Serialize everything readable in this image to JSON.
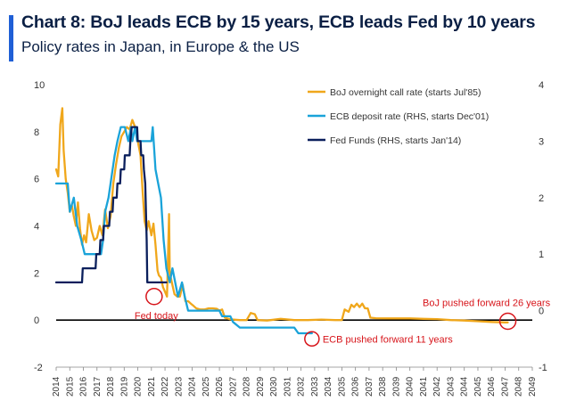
{
  "header": {
    "title": "Chart 8: BoJ leads ECB by 15 years, ECB leads Fed by 10 years",
    "subtitle": "Policy rates in Japan, in Europe & the US"
  },
  "chart_data": {
    "type": "line",
    "x_unit": "year",
    "xlim": [
      2014,
      2049
    ],
    "x_tick_labels": [
      "2014",
      "2015",
      "2016",
      "2017",
      "2018",
      "2019",
      "2020",
      "2021",
      "2022",
      "2023",
      "2024",
      "2025",
      "2026",
      "2027",
      "2028",
      "2029",
      "2030",
      "2031",
      "2032",
      "2033",
      "2034",
      "2035",
      "2036",
      "2037",
      "2038",
      "2039",
      "2040",
      "2041",
      "2042",
      "2043",
      "2044",
      "2045",
      "2046",
      "2047",
      "2048",
      "2049"
    ],
    "y_left": {
      "ylim": [
        -2,
        10
      ],
      "ticks": [
        -2,
        0,
        2,
        4,
        6,
        8,
        10
      ]
    },
    "y_right": {
      "ylim": [
        -1,
        4
      ],
      "ticks": [
        -1,
        0,
        1,
        2,
        3,
        4
      ]
    },
    "grid": false,
    "legend_position": "top-right",
    "series": [
      {
        "name": "BoJ overnight call rate (starts Jul'85)",
        "axis": "left",
        "color": "#f0a71b",
        "points": [
          [
            2014.0,
            6.4
          ],
          [
            2014.15,
            6.1
          ],
          [
            2014.3,
            8.3
          ],
          [
            2014.45,
            9.0
          ],
          [
            2014.55,
            7.2
          ],
          [
            2014.7,
            6.0
          ],
          [
            2014.85,
            5.4
          ],
          [
            2015.0,
            4.6
          ],
          [
            2015.15,
            4.9
          ],
          [
            2015.3,
            4.4
          ],
          [
            2015.45,
            4.0
          ],
          [
            2015.6,
            5.0
          ],
          [
            2015.75,
            3.9
          ],
          [
            2015.9,
            3.2
          ],
          [
            2016.05,
            3.6
          ],
          [
            2016.2,
            3.3
          ],
          [
            2016.4,
            4.5
          ],
          [
            2016.6,
            3.8
          ],
          [
            2016.8,
            3.4
          ],
          [
            2017.0,
            3.5
          ],
          [
            2017.2,
            4.0
          ],
          [
            2017.4,
            3.6
          ],
          [
            2017.6,
            4.7
          ],
          [
            2017.8,
            3.9
          ],
          [
            2018.0,
            4.4
          ],
          [
            2018.2,
            5.8
          ],
          [
            2018.4,
            6.6
          ],
          [
            2018.6,
            7.3
          ],
          [
            2018.8,
            7.8
          ],
          [
            2019.0,
            8.0
          ],
          [
            2019.2,
            8.2
          ],
          [
            2019.4,
            8.1
          ],
          [
            2019.6,
            8.5
          ],
          [
            2019.8,
            8.2
          ],
          [
            2020.0,
            7.6
          ],
          [
            2020.2,
            7.0
          ],
          [
            2020.35,
            5.5
          ],
          [
            2020.5,
            4.2
          ],
          [
            2020.65,
            3.8
          ],
          [
            2020.8,
            4.2
          ],
          [
            2021.0,
            3.6
          ],
          [
            2021.15,
            4.1
          ],
          [
            2021.3,
            3.2
          ],
          [
            2021.45,
            2.1
          ],
          [
            2021.55,
            1.9
          ],
          [
            2021.7,
            1.8
          ],
          [
            2021.85,
            1.4
          ],
          [
            2022.0,
            1.2
          ],
          [
            2022.15,
            1.0
          ],
          [
            2022.3,
            4.5
          ],
          [
            2022.35,
            2.0
          ],
          [
            2022.5,
            1.6
          ],
          [
            2022.7,
            1.1
          ],
          [
            2022.9,
            1.0
          ],
          [
            2023.1,
            1.0
          ],
          [
            2023.3,
            1.5
          ],
          [
            2023.5,
            0.8
          ],
          [
            2023.7,
            0.8
          ],
          [
            2023.9,
            0.7
          ],
          [
            2024.1,
            0.6
          ],
          [
            2024.3,
            0.5
          ],
          [
            2024.6,
            0.45
          ],
          [
            2024.9,
            0.45
          ],
          [
            2025.2,
            0.5
          ],
          [
            2025.5,
            0.5
          ],
          [
            2025.8,
            0.48
          ],
          [
            2026.0,
            0.4
          ],
          [
            2026.2,
            0.45
          ],
          [
            2026.4,
            0.1
          ],
          [
            2026.8,
            0.03
          ],
          [
            2027.5,
            0.0
          ],
          [
            2028.0,
            0.0
          ],
          [
            2028.3,
            0.3
          ],
          [
            2028.6,
            0.25
          ],
          [
            2028.8,
            0.0
          ],
          [
            2029.5,
            -0.02
          ],
          [
            2030.5,
            0.05
          ],
          [
            2031.5,
            0.0
          ],
          [
            2032.5,
            0.0
          ],
          [
            2033.5,
            0.02
          ],
          [
            2034.5,
            0.0
          ],
          [
            2035.0,
            0.0
          ],
          [
            2035.2,
            0.45
          ],
          [
            2035.5,
            0.35
          ],
          [
            2035.7,
            0.65
          ],
          [
            2035.9,
            0.55
          ],
          [
            2036.1,
            0.7
          ],
          [
            2036.3,
            0.55
          ],
          [
            2036.5,
            0.7
          ],
          [
            2036.7,
            0.5
          ],
          [
            2036.9,
            0.5
          ],
          [
            2037.1,
            0.1
          ],
          [
            2037.5,
            0.08
          ],
          [
            2038.5,
            0.07
          ],
          [
            2040.0,
            0.07
          ],
          [
            2041.0,
            0.05
          ],
          [
            2042.0,
            0.04
          ],
          [
            2043.0,
            0.0
          ],
          [
            2044.0,
            -0.02
          ],
          [
            2045.0,
            -0.05
          ],
          [
            2046.0,
            -0.08
          ],
          [
            2047.0,
            -0.1
          ],
          [
            2047.2,
            -0.1
          ]
        ]
      },
      {
        "name": "ECB deposit rate (RHS, starts Dec'01)",
        "axis": "right",
        "color": "#1aa3d9",
        "points": [
          [
            2014.0,
            2.25
          ],
          [
            2014.85,
            2.25
          ],
          [
            2015.0,
            1.75
          ],
          [
            2015.3,
            2.0
          ],
          [
            2015.55,
            1.5
          ],
          [
            2015.85,
            1.25
          ],
          [
            2016.1,
            1.0
          ],
          [
            2017.3,
            1.0
          ],
          [
            2017.45,
            1.25
          ],
          [
            2017.6,
            1.75
          ],
          [
            2017.85,
            2.0
          ],
          [
            2018.0,
            2.25
          ],
          [
            2018.15,
            2.5
          ],
          [
            2018.3,
            2.75
          ],
          [
            2018.5,
            3.0
          ],
          [
            2018.75,
            3.25
          ],
          [
            2019.05,
            3.25
          ],
          [
            2019.3,
            3.0
          ],
          [
            2019.5,
            3.25
          ],
          [
            2019.6,
            3.0
          ],
          [
            2019.8,
            3.25
          ],
          [
            2019.95,
            3.0
          ],
          [
            2020.0,
            3.0
          ],
          [
            2021.0,
            3.0
          ],
          [
            2021.1,
            3.25
          ],
          [
            2021.3,
            2.5
          ],
          [
            2021.5,
            2.25
          ],
          [
            2021.7,
            2.0
          ],
          [
            2021.9,
            1.25
          ],
          [
            2022.1,
            0.75
          ],
          [
            2022.35,
            0.5
          ],
          [
            2022.55,
            0.75
          ],
          [
            2022.75,
            0.5
          ],
          [
            2022.95,
            0.25
          ],
          [
            2023.25,
            0.5
          ],
          [
            2023.45,
            0.25
          ],
          [
            2023.7,
            0.0
          ],
          [
            2026.0,
            0.0
          ],
          [
            2026.2,
            -0.1
          ],
          [
            2026.8,
            -0.1
          ],
          [
            2027.0,
            -0.2
          ],
          [
            2027.5,
            -0.3
          ],
          [
            2028.0,
            -0.3
          ],
          [
            2031.5,
            -0.3
          ],
          [
            2031.8,
            -0.4
          ],
          [
            2032.8,
            -0.4
          ]
        ]
      },
      {
        "name": "Fed Funds (RHS, starts Jan'14)",
        "axis": "right",
        "color": "#0a1f5c",
        "points": [
          [
            2014.0,
            0.5
          ],
          [
            2015.9,
            0.5
          ],
          [
            2015.95,
            0.75
          ],
          [
            2016.9,
            0.75
          ],
          [
            2016.95,
            1.0
          ],
          [
            2017.2,
            1.0
          ],
          [
            2017.25,
            1.25
          ],
          [
            2017.45,
            1.25
          ],
          [
            2017.5,
            1.5
          ],
          [
            2017.9,
            1.5
          ],
          [
            2017.95,
            1.75
          ],
          [
            2018.15,
            1.75
          ],
          [
            2018.2,
            2.0
          ],
          [
            2018.45,
            2.0
          ],
          [
            2018.5,
            2.25
          ],
          [
            2018.7,
            2.25
          ],
          [
            2018.75,
            2.5
          ],
          [
            2019.0,
            2.5
          ],
          [
            2019.05,
            2.75
          ],
          [
            2019.4,
            2.75
          ],
          [
            2019.45,
            3.0
          ],
          [
            2019.55,
            3.25
          ],
          [
            2019.95,
            3.25
          ],
          [
            2020.0,
            3.0
          ],
          [
            2020.2,
            3.0
          ],
          [
            2020.25,
            2.75
          ],
          [
            2020.4,
            2.75
          ],
          [
            2020.45,
            2.5
          ],
          [
            2020.55,
            2.25
          ],
          [
            2020.65,
            1.25
          ],
          [
            2020.7,
            0.5
          ],
          [
            2022.1,
            0.5
          ]
        ]
      }
    ],
    "annotations": [
      {
        "text": "Fed today",
        "x": 2021.2,
        "y_left": 1.0
      },
      {
        "text": "ECB pushed forward 11 years",
        "x": 2032.8,
        "y_left": -0.8
      },
      {
        "text": "BoJ pushed forward 26 years",
        "x": 2047.2,
        "y_left": -0.05
      }
    ]
  }
}
